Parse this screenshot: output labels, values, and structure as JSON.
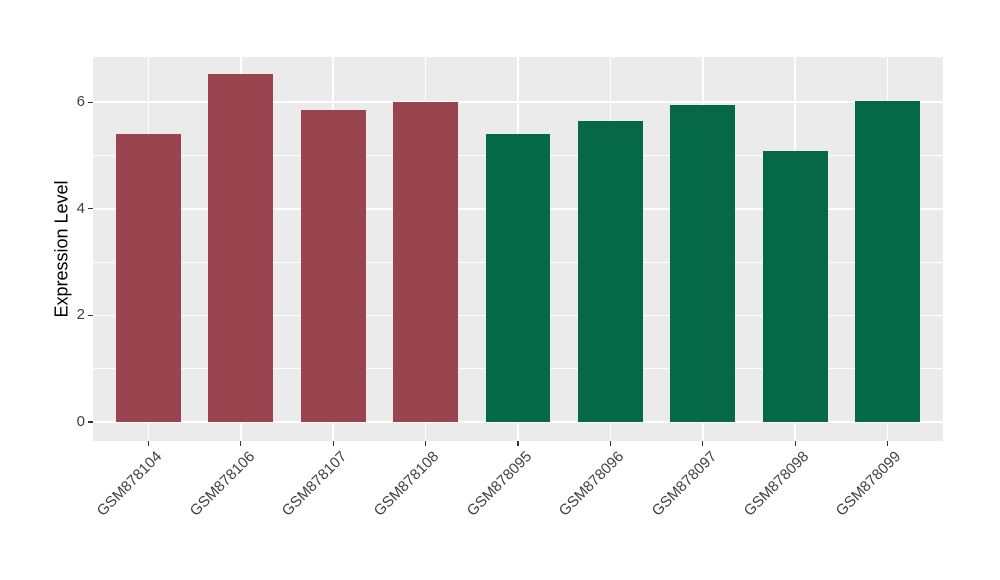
{
  "chart_data": {
    "type": "bar",
    "title": "",
    "xlabel": "",
    "ylabel": "Expression Level",
    "categories": [
      "GSM878104",
      "GSM878106",
      "GSM878107",
      "GSM878108",
      "GSM878095",
      "GSM878096",
      "GSM878097",
      "GSM878098",
      "GSM878099"
    ],
    "values": [
      5.4,
      6.52,
      5.86,
      6.0,
      5.4,
      5.65,
      5.95,
      5.09,
      6.03
    ],
    "bar_colors": [
      "#9A4450",
      "#9A4450",
      "#9A4450",
      "#9A4450",
      "#056947",
      "#056947",
      "#056947",
      "#056947",
      "#056947"
    ],
    "group_colors": {
      "left_group": "#9A4450",
      "right_group": "#056947"
    },
    "y_ticks": [
      0,
      2,
      4,
      6
    ],
    "y_minor_ticks": [
      1,
      3,
      5
    ],
    "ylim": [
      -0.33,
      6.87
    ],
    "grid": "on",
    "legend": "none",
    "panel_bg": "#EBEBEB",
    "grid_color": "#FFFFFF",
    "axis_text_color": "#404040"
  }
}
